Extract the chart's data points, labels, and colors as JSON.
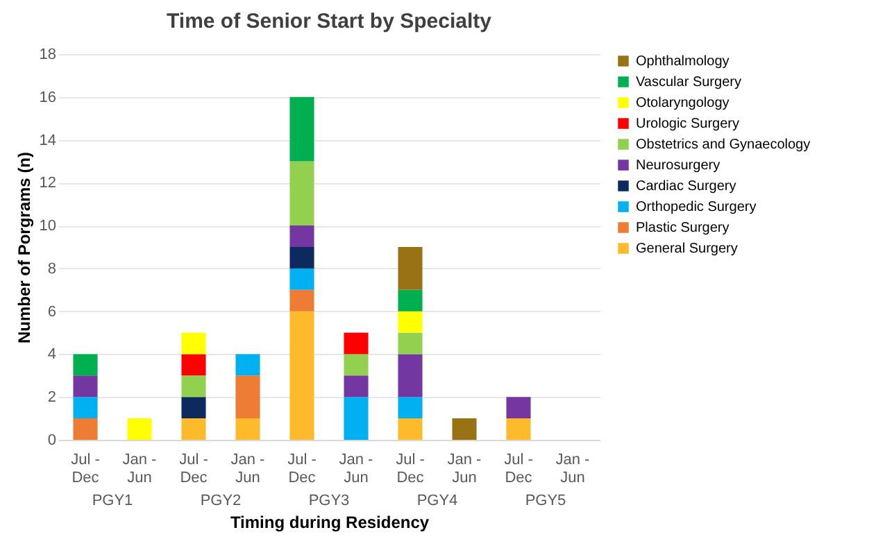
{
  "chart_data": {
    "type": "bar",
    "stacked": true,
    "title": "Time of Senior Start by Specialty",
    "xlabel": "Timing during Residency",
    "ylabel": "Number of Porgrams (n)",
    "categories": [
      "Jul - Dec",
      "Jan - Jun",
      "Jul - Dec",
      "Jan - Jun",
      "Jul - Dec",
      "Jan - Jun",
      "Jul - Dec",
      "Jan - Jun",
      "Jul - Dec",
      "Jan - Jun"
    ],
    "annotations": [
      "PGY1",
      "PGY2",
      "PGY3",
      "PGY4",
      "PGY5"
    ],
    "ylim": [
      0,
      18
    ],
    "yticks": [
      0,
      2,
      4,
      6,
      8,
      10,
      12,
      14,
      16,
      18
    ],
    "grid": "y",
    "legend": "right",
    "series": [
      {
        "name": "General Surgery",
        "color": "#fdbb2c",
        "values": [
          null,
          null,
          1,
          1,
          6,
          null,
          1,
          null,
          1,
          null
        ]
      },
      {
        "name": "Plastic Surgery",
        "color": "#ee7c34",
        "values": [
          1,
          null,
          null,
          2,
          1,
          null,
          null,
          null,
          null,
          null
        ]
      },
      {
        "name": "Orthopedic Surgery",
        "color": "#00b0f0",
        "values": [
          1,
          null,
          null,
          1,
          1,
          2,
          1,
          null,
          null,
          null
        ]
      },
      {
        "name": "Cardiac Surgery",
        "color": "#0d2a5e",
        "values": [
          null,
          null,
          1,
          null,
          1,
          null,
          null,
          null,
          null,
          null
        ]
      },
      {
        "name": "Neurosurgery",
        "color": "#7437a2",
        "values": [
          1,
          null,
          null,
          null,
          1,
          1,
          2,
          null,
          1,
          null
        ]
      },
      {
        "name": "Obstetrics and Gynaecology",
        "color": "#92d050",
        "values": [
          null,
          null,
          1,
          null,
          3,
          1,
          1,
          null,
          null,
          null
        ]
      },
      {
        "name": "Urologic Surgery",
        "color": "#ff0000",
        "values": [
          null,
          null,
          1,
          null,
          null,
          1,
          null,
          null,
          null,
          null
        ]
      },
      {
        "name": "Otolaryngology",
        "color": "#ffff00",
        "values": [
          null,
          1,
          1,
          null,
          null,
          null,
          1,
          null,
          null,
          null
        ]
      },
      {
        "name": "Vascular Surgery",
        "color": "#00b050",
        "values": [
          1,
          null,
          null,
          null,
          3,
          null,
          1,
          null,
          null,
          null
        ]
      },
      {
        "name": "Ophthalmology",
        "color": "#9a7216",
        "values": [
          null,
          null,
          null,
          null,
          null,
          null,
          2,
          1,
          null,
          null
        ]
      }
    ]
  }
}
